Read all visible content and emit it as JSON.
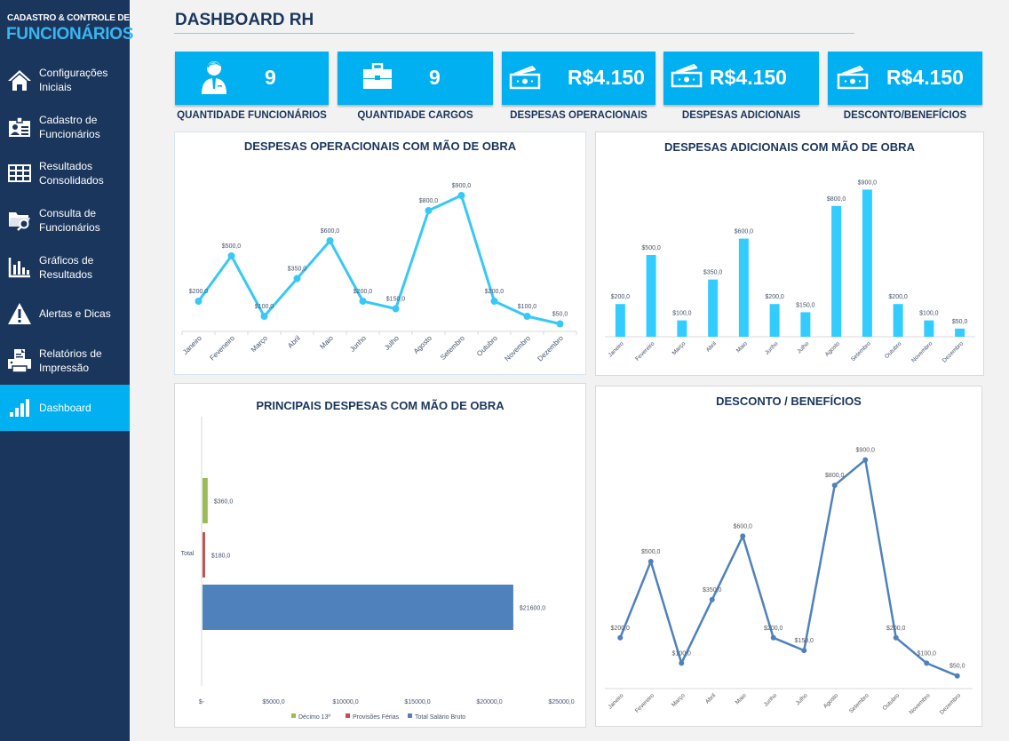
{
  "sidebar": {
    "brand_top": "CADASTRO & CONTROLE DE",
    "brand_main": "FUNCIONÁRIOS",
    "items": [
      {
        "line1": "Configurações",
        "line2": "Iniciais",
        "icon": "home-icon"
      },
      {
        "line1": "Cadastro de",
        "line2": "Funcionários",
        "icon": "id-card-icon"
      },
      {
        "line1": "Resultados",
        "line2": "Consolidados",
        "icon": "table-grid-icon"
      },
      {
        "line1": "Consulta de",
        "line2": "Funcionários",
        "icon": "folder-search-icon"
      },
      {
        "line1": "Gráficos de",
        "line2": "Resultados",
        "icon": "bar-chart-icon"
      },
      {
        "line1": "Alertas e Dicas",
        "line2": "",
        "icon": "warning-icon"
      },
      {
        "line1": "Relatórios de",
        "line2": "Impressão",
        "icon": "printer-icon"
      },
      {
        "line1": "Dashboard",
        "line2": "",
        "icon": "signal-bars-icon",
        "active": true
      }
    ]
  },
  "header": {
    "title": "DASHBOARD RH"
  },
  "kpis": [
    {
      "value": "9",
      "label": "QUANTIDADE FUNCIONÁRIOS",
      "icon": "employee-icon"
    },
    {
      "value": "9",
      "label": "QUANTIDADE CARGOS",
      "icon": "briefcase-icon"
    },
    {
      "value": "R$4.150",
      "label": "DESPESAS OPERACIONAIS",
      "icon": "money-icon"
    },
    {
      "value": "R$4.150",
      "label": "DESPESAS ADICIONAIS",
      "icon": "money-icon"
    },
    {
      "value": "R$4.150",
      "label": "DESCONTO/BENEFÍCIOS",
      "icon": "money-icon"
    }
  ],
  "colors": {
    "sidebar_bg": "#1b365d",
    "accent": "#00b0f0",
    "title_text": "#1b365d",
    "line_light": "#38c8f5",
    "bar_light": "#33ccff",
    "line_dark": "#4f81bd",
    "decimo": "#9bbb59",
    "provisoes": "#c0504d",
    "salario": "#4f81bd"
  },
  "chart_data": [
    {
      "id": "operacionais",
      "type": "line",
      "title": "DESPESAS OPERACIONAIS COM MÃO DE OBRA",
      "categories": [
        "Janeiro",
        "Feveneiro",
        "Março",
        "Abril",
        "Maio",
        "Junho",
        "Julho",
        "Agosto",
        "Setembro",
        "Outubro",
        "Novembro",
        "Dezembro"
      ],
      "values": [
        200,
        500,
        100,
        350,
        600,
        200,
        150,
        800,
        900,
        200,
        100,
        50
      ],
      "data_labels": [
        "$200,0",
        "$500,0",
        "$100,0",
        "$350,0",
        "$600,0",
        "$200,0",
        "$150,0",
        "$800,0",
        "$900,0",
        "$200,0",
        "$100,0",
        "$50,0"
      ],
      "ylim": [
        0,
        1000
      ],
      "grid": false
    },
    {
      "id": "adicionais",
      "type": "bar",
      "title": "DESPESAS ADICIONAIS COM MÃO DE OBRA",
      "categories": [
        "Janeiro",
        "Fevereiro",
        "Março",
        "Abril",
        "Maio",
        "Junho",
        "Julho",
        "Agosto",
        "Setembro",
        "Outubro",
        "Novembro",
        "Dezembro"
      ],
      "values": [
        200,
        500,
        100,
        350,
        600,
        200,
        150,
        800,
        900,
        200,
        100,
        50
      ],
      "data_labels": [
        "$200,0",
        "$500,0",
        "$100,0",
        "$350,0",
        "$600,0",
        "$200,0",
        "$150,0",
        "$800,0",
        "$900,0",
        "$200,0",
        "$100,0",
        "$50,0"
      ],
      "ylim": [
        0,
        1000
      ],
      "grid": false
    },
    {
      "id": "principais",
      "type": "bar",
      "orientation": "horizontal",
      "title": "PRINCIPAIS DESPESAS COM MÃO DE OBRA",
      "categories": [
        "Total"
      ],
      "series": [
        {
          "name": "Décimo 13º",
          "values": [
            360
          ],
          "label": "$360,0"
        },
        {
          "name": "Provisões Férias",
          "values": [
            180
          ],
          "label": "$180,0"
        },
        {
          "name": "Total Salário Bruto",
          "values": [
            21600
          ],
          "label": "$21600,0"
        }
      ],
      "xticks": [
        "$-",
        "$5000,0",
        "$10000,0",
        "$15000,0",
        "$20000,0",
        "$25000,0"
      ],
      "xlim": [
        0,
        25000
      ],
      "legend": "bottom",
      "grid": false
    },
    {
      "id": "descontos",
      "type": "line",
      "title": "DESCONTO / BENEFÍCIOS",
      "categories": [
        "Janeiro",
        "Fevereiro",
        "Março",
        "Abril",
        "Maio",
        "Junho",
        "Julho",
        "Agosto",
        "Setembro",
        "Outubro",
        "Novembro",
        "Dezembro"
      ],
      "values": [
        200,
        500,
        100,
        350,
        600,
        200,
        150,
        800,
        900,
        200,
        100,
        50
      ],
      "data_labels": [
        "$200,0",
        "$500,0",
        "$100,0",
        "$350,0",
        "$600,0",
        "$200,0",
        "$150,0",
        "$800,0",
        "$900,0",
        "$200,0",
        "$100,0",
        "$50,0"
      ],
      "ylim": [
        0,
        1000
      ],
      "grid": false
    }
  ]
}
